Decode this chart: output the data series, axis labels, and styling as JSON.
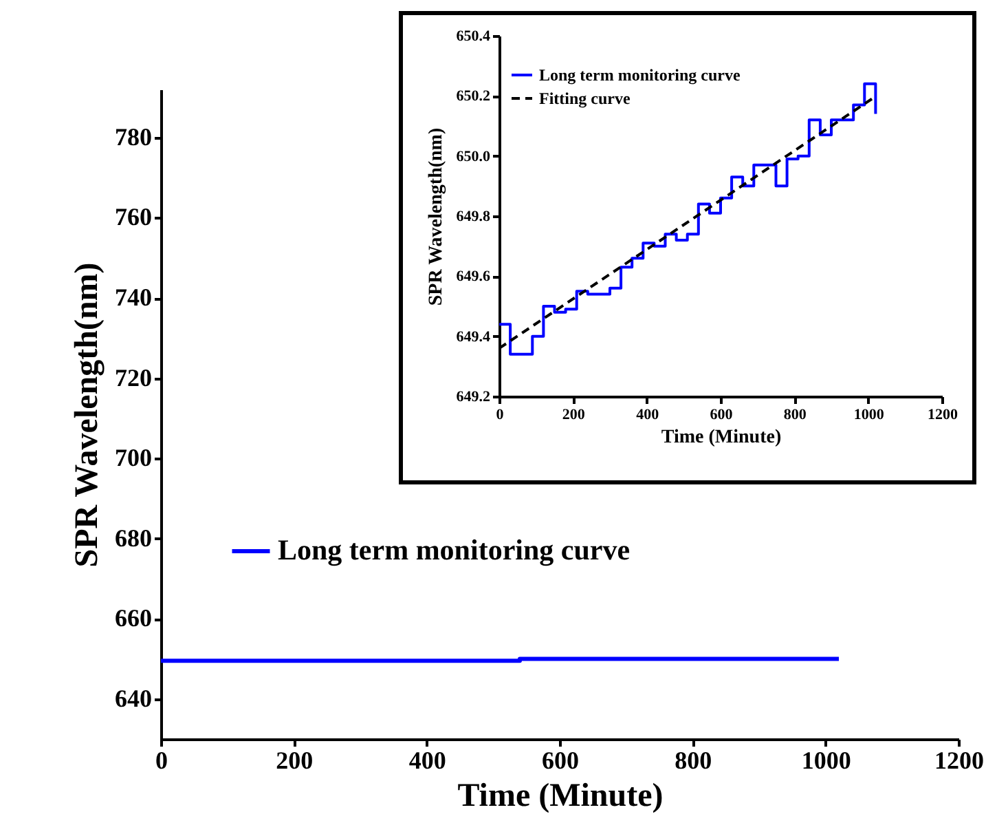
{
  "chart_data": [
    {
      "type": "step",
      "xlabel": "Time (Minute)",
      "ylabel": "SPR Wavelength(nm)",
      "xlim": [
        0,
        1200
      ],
      "ylim": [
        630,
        792
      ],
      "xticks": [
        0,
        200,
        400,
        600,
        800,
        1000,
        1200
      ],
      "yticks": [
        640,
        660,
        680,
        700,
        720,
        740,
        760,
        780
      ],
      "legend": "left",
      "grid": false,
      "series": [
        {
          "name": "Long term monitoring curve",
          "color": "#0000ff",
          "x": [
            0,
            540,
            1020
          ],
          "values": [
            649.5,
            650,
            650
          ]
        }
      ]
    },
    {
      "type": "step",
      "xlabel": "Time (Minute)",
      "ylabel": "SPR Wavelength(nm)",
      "xlim": [
        0,
        1200
      ],
      "ylim": [
        649.2,
        650.4
      ],
      "xticks": [
        0,
        200,
        400,
        600,
        800,
        1000,
        1200
      ],
      "yticks": [
        649.2,
        649.4,
        649.6,
        649.8,
        {
          "value": 650,
          "label": "650.0"
        },
        650.2,
        650.4
      ],
      "legend": "top left",
      "grid": false,
      "series": [
        {
          "name": "Long term monitoring curve",
          "color": "#0000ff",
          "x": [
            0,
            30,
            90,
            120,
            150,
            180,
            210,
            240,
            300,
            330,
            360,
            390,
            420,
            450,
            480,
            510,
            540,
            570,
            600,
            630,
            660,
            690,
            750,
            780,
            810,
            840,
            870,
            900,
            960,
            990,
            1020,
            1020
          ],
          "values": [
            649.44,
            649.34,
            649.4,
            649.5,
            649.48,
            649.49,
            649.55,
            649.54,
            649.56,
            649.63,
            649.66,
            649.71,
            649.7,
            649.74,
            649.72,
            649.74,
            649.84,
            649.81,
            649.86,
            649.93,
            649.9,
            649.97,
            649.9,
            649.99,
            650.0,
            650.12,
            650.07,
            650.12,
            650.17,
            650.24,
            650.24,
            650.14
          ]
        },
        {
          "name": "Fitting curve",
          "type": "line",
          "line_style": "dashed",
          "color": "#000000",
          "x": [
            0,
            1010
          ],
          "values": [
            649.36,
            650.19
          ]
        }
      ]
    }
  ]
}
